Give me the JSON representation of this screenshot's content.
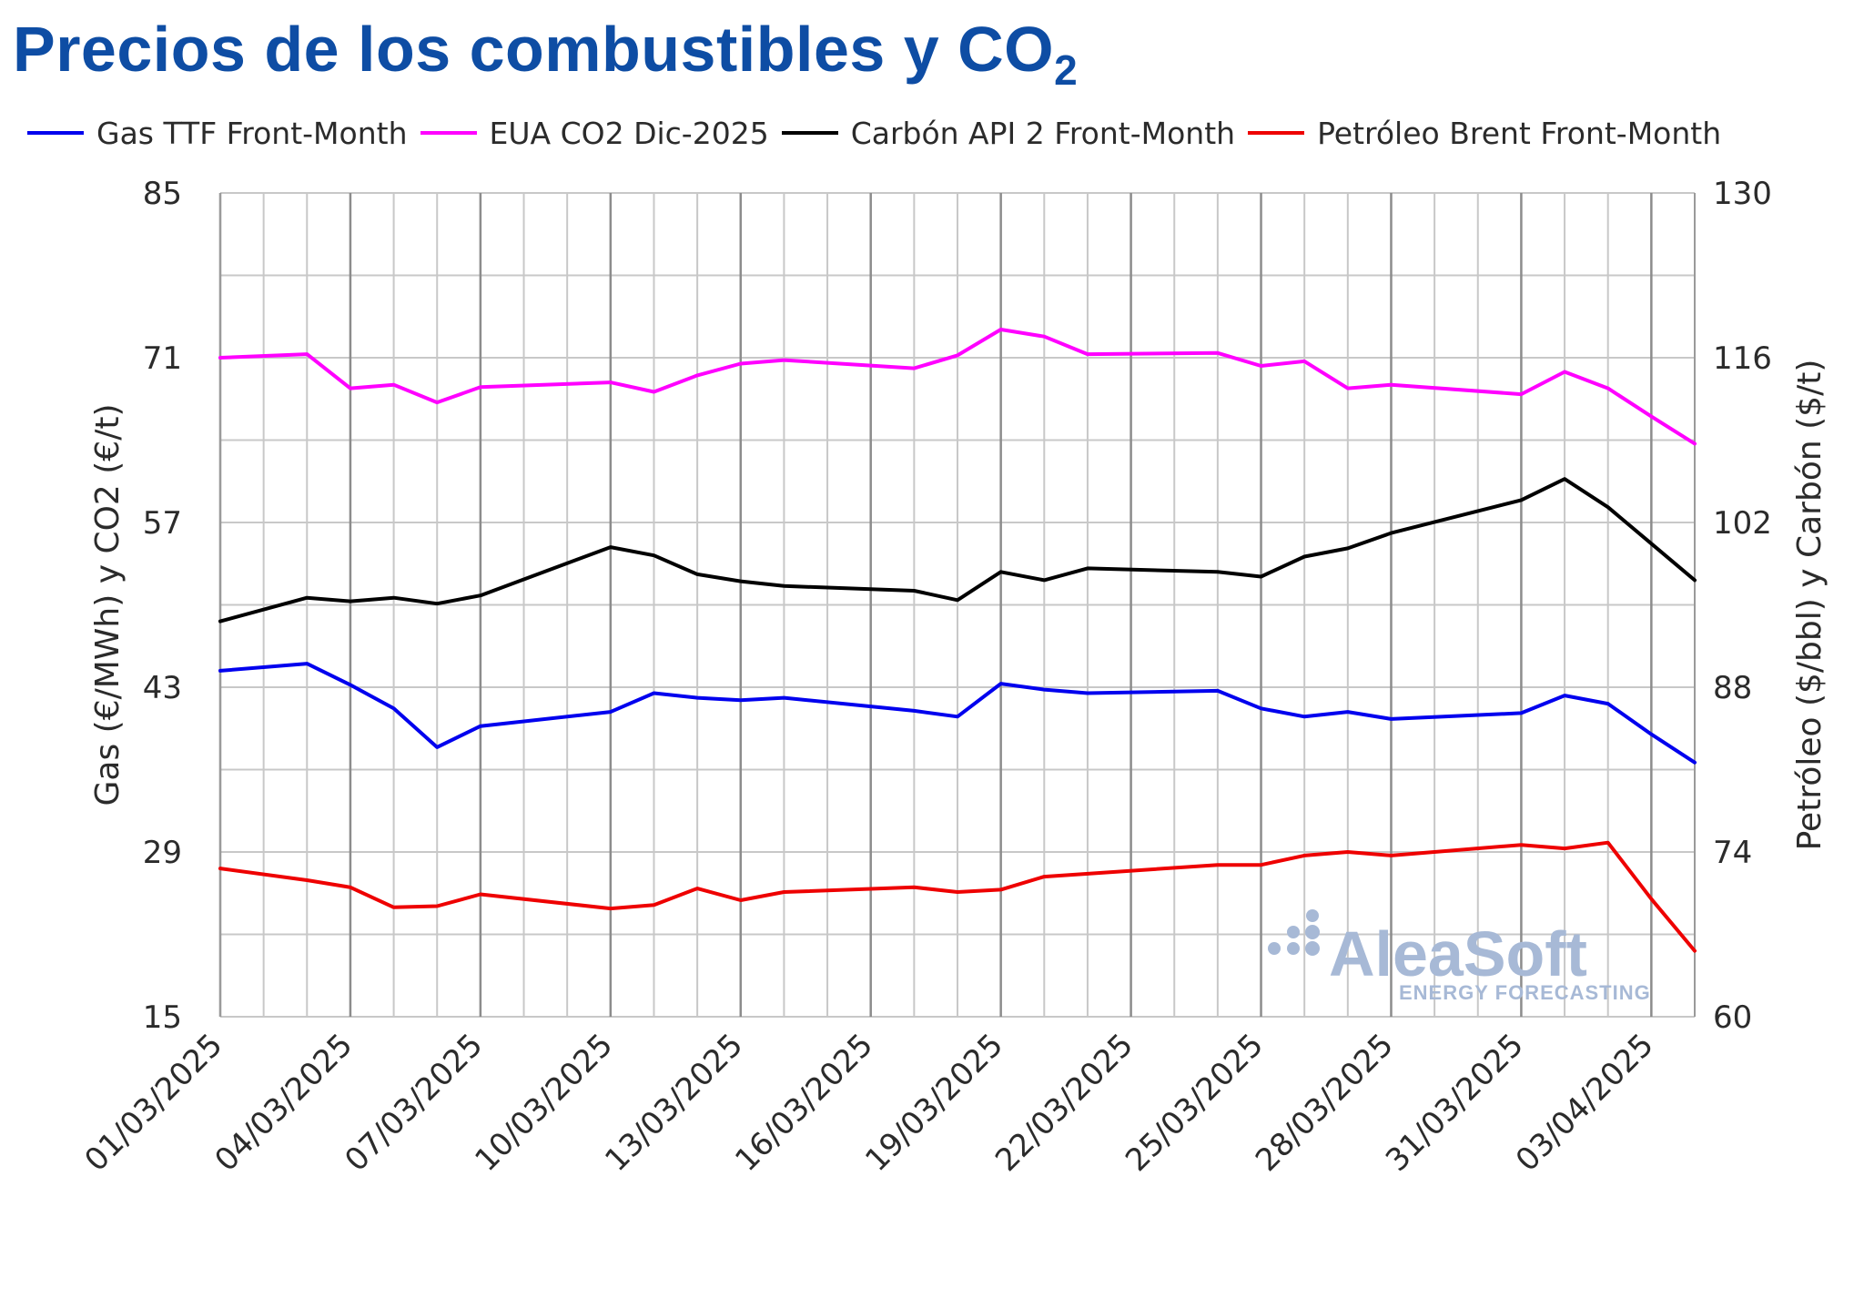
{
  "title": {
    "main": "Precios de los combustibles y CO",
    "subscript": "2"
  },
  "watermark": {
    "brand": "AleaSoft",
    "tagline": "ENERGY FORECASTING"
  },
  "chart_data": {
    "type": "line",
    "title": "Precios de los combustibles y CO2",
    "x_tick_labels": [
      "01/03/2025",
      "04/03/2025",
      "07/03/2025",
      "10/03/2025",
      "13/03/2025",
      "16/03/2025",
      "19/03/2025",
      "22/03/2025",
      "25/03/2025",
      "28/03/2025",
      "31/03/2025",
      "03/04/2025"
    ],
    "x_start": "2025-03-01",
    "x_end": "2025-04-04",
    "y_left": {
      "label": "Gas (€/MWh) y CO2 (€/t)",
      "min": 15,
      "max": 85,
      "ticks": [
        15,
        29,
        43,
        57,
        71,
        85
      ]
    },
    "y_right": {
      "label": "Petróleo ($/bbl) y Carbón ($/t)",
      "min": 60,
      "max": 130,
      "ticks": [
        60,
        74,
        88,
        102,
        116,
        130
      ]
    },
    "grid": true,
    "legend_position": "top",
    "series": [
      {
        "name": "Gas TTF Front-Month",
        "axis": "left",
        "color": "#0000ee",
        "points": [
          [
            "2025-03-01",
            44.4
          ],
          [
            "2025-03-03",
            45.0
          ],
          [
            "2025-03-04",
            43.2
          ],
          [
            "2025-03-05",
            41.2
          ],
          [
            "2025-03-06",
            37.9
          ],
          [
            "2025-03-07",
            39.7
          ],
          [
            "2025-03-10",
            40.9
          ],
          [
            "2025-03-11",
            42.5
          ],
          [
            "2025-03-12",
            42.1
          ],
          [
            "2025-03-13",
            41.9
          ],
          [
            "2025-03-14",
            42.1
          ],
          [
            "2025-03-17",
            41.0
          ],
          [
            "2025-03-18",
            40.5
          ],
          [
            "2025-03-19",
            43.3
          ],
          [
            "2025-03-20",
            42.8
          ],
          [
            "2025-03-21",
            42.5
          ],
          [
            "2025-03-24",
            42.7
          ],
          [
            "2025-03-25",
            41.2
          ],
          [
            "2025-03-26",
            40.5
          ],
          [
            "2025-03-27",
            40.9
          ],
          [
            "2025-03-28",
            40.3
          ],
          [
            "2025-03-31",
            40.8
          ],
          [
            "2025-04-01",
            42.3
          ],
          [
            "2025-04-02",
            41.6
          ],
          [
            "2025-04-03",
            39.0
          ],
          [
            "2025-04-04",
            36.6
          ]
        ]
      },
      {
        "name": "EUA CO2 Dic-2025",
        "axis": "left",
        "color": "#ff00ff",
        "points": [
          [
            "2025-03-01",
            71.0
          ],
          [
            "2025-03-03",
            71.3
          ],
          [
            "2025-03-04",
            68.4
          ],
          [
            "2025-03-05",
            68.7
          ],
          [
            "2025-03-06",
            67.2
          ],
          [
            "2025-03-07",
            68.5
          ],
          [
            "2025-03-10",
            68.9
          ],
          [
            "2025-03-11",
            68.1
          ],
          [
            "2025-03-12",
            69.5
          ],
          [
            "2025-03-13",
            70.5
          ],
          [
            "2025-03-14",
            70.8
          ],
          [
            "2025-03-17",
            70.1
          ],
          [
            "2025-03-18",
            71.2
          ],
          [
            "2025-03-19",
            73.4
          ],
          [
            "2025-03-20",
            72.8
          ],
          [
            "2025-03-21",
            71.3
          ],
          [
            "2025-03-24",
            71.4
          ],
          [
            "2025-03-25",
            70.3
          ],
          [
            "2025-03-26",
            70.7
          ],
          [
            "2025-03-27",
            68.4
          ],
          [
            "2025-03-28",
            68.7
          ],
          [
            "2025-03-31",
            67.9
          ],
          [
            "2025-04-01",
            69.8
          ],
          [
            "2025-04-02",
            68.4
          ],
          [
            "2025-04-03",
            66.0
          ],
          [
            "2025-04-04",
            63.7
          ]
        ]
      },
      {
        "name": "Carbón API 2 Front-Month",
        "axis": "right",
        "color": "#000000",
        "points": [
          [
            "2025-03-01",
            93.6
          ],
          [
            "2025-03-03",
            95.6
          ],
          [
            "2025-03-04",
            95.3
          ],
          [
            "2025-03-05",
            95.6
          ],
          [
            "2025-03-06",
            95.1
          ],
          [
            "2025-03-07",
            95.8
          ],
          [
            "2025-03-10",
            99.9
          ],
          [
            "2025-03-11",
            99.2
          ],
          [
            "2025-03-12",
            97.6
          ],
          [
            "2025-03-13",
            97.0
          ],
          [
            "2025-03-14",
            96.6
          ],
          [
            "2025-03-17",
            96.2
          ],
          [
            "2025-03-18",
            95.4
          ],
          [
            "2025-03-19",
            97.8
          ],
          [
            "2025-03-20",
            97.1
          ],
          [
            "2025-03-21",
            98.1
          ],
          [
            "2025-03-24",
            97.8
          ],
          [
            "2025-03-25",
            97.4
          ],
          [
            "2025-03-26",
            99.1
          ],
          [
            "2025-03-27",
            99.8
          ],
          [
            "2025-03-28",
            101.1
          ],
          [
            "2025-03-31",
            103.9
          ],
          [
            "2025-04-01",
            105.7
          ],
          [
            "2025-04-02",
            103.3
          ],
          [
            "2025-04-03",
            100.2
          ],
          [
            "2025-04-04",
            97.1
          ]
        ]
      },
      {
        "name": "Petróleo Brent Front-Month",
        "axis": "right",
        "color": "#ee0000",
        "points": [
          [
            "2025-03-01",
            72.6
          ],
          [
            "2025-03-03",
            71.6
          ],
          [
            "2025-03-04",
            71.0
          ],
          [
            "2025-03-05",
            69.3
          ],
          [
            "2025-03-06",
            69.4
          ],
          [
            "2025-03-07",
            70.4
          ],
          [
            "2025-03-10",
            69.2
          ],
          [
            "2025-03-11",
            69.5
          ],
          [
            "2025-03-12",
            70.9
          ],
          [
            "2025-03-13",
            69.9
          ],
          [
            "2025-03-14",
            70.6
          ],
          [
            "2025-03-17",
            71.0
          ],
          [
            "2025-03-18",
            70.6
          ],
          [
            "2025-03-19",
            70.8
          ],
          [
            "2025-03-20",
            71.9
          ],
          [
            "2025-03-24",
            72.9
          ],
          [
            "2025-03-25",
            72.9
          ],
          [
            "2025-03-26",
            73.7
          ],
          [
            "2025-03-27",
            74.0
          ],
          [
            "2025-03-28",
            73.7
          ],
          [
            "2025-03-31",
            74.6
          ],
          [
            "2025-04-01",
            74.3
          ],
          [
            "2025-04-02",
            74.8
          ],
          [
            "2025-04-03",
            70.0
          ],
          [
            "2025-04-04",
            65.6
          ]
        ]
      }
    ]
  }
}
